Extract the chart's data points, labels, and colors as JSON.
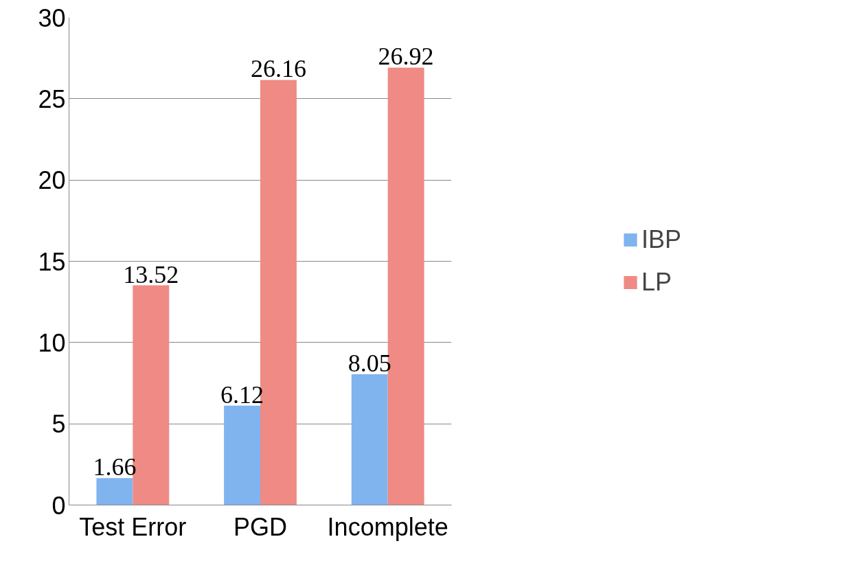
{
  "chart_data": {
    "type": "bar",
    "categories": [
      "Test Error",
      "PGD",
      "Incomplete"
    ],
    "series": [
      {
        "name": "IBP",
        "color": "#80b4ef",
        "values": [
          1.66,
          6.12,
          8.05
        ]
      },
      {
        "name": "LP",
        "color": "#ef8a85",
        "values": [
          13.52,
          26.16,
          26.92
        ]
      }
    ],
    "ylim": [
      0,
      30
    ],
    "yticks": [
      0,
      5,
      10,
      15,
      20,
      25,
      30
    ],
    "grid": "y",
    "legend": "right",
    "data_labels": true
  }
}
